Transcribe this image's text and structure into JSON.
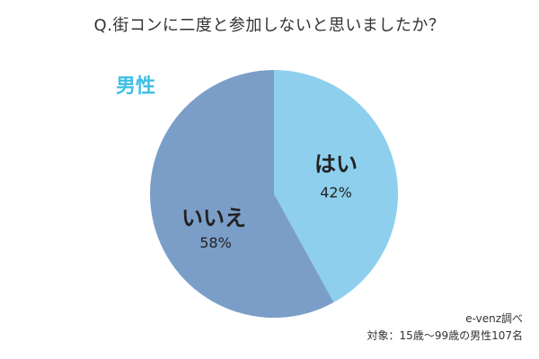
{
  "chart_data": {
    "type": "pie",
    "title": "Q.街コンに二度と参加しないと思いましたか？",
    "subtitle": "男性",
    "slices": [
      {
        "label": "はい",
        "value": 42,
        "value_text": "42%",
        "color": "#8ecfee"
      },
      {
        "label": "いいえ",
        "value": 58,
        "value_text": "58%",
        "color": "#7b9ec8"
      }
    ]
  },
  "footer": {
    "source": "e-venz調べ",
    "subjects": "対象：15歳〜99歳の男性107名"
  }
}
